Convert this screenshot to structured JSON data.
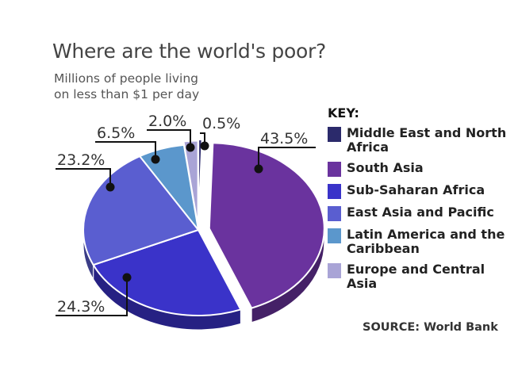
{
  "title": "Where are the world's poor?",
  "subtitle": [
    "Millions of people living",
    "on less than $1 per day"
  ],
  "legend_title": "KEY:",
  "source": "SOURCE: World Bank",
  "chart_data": {
    "type": "pie",
    "title": "Where are the world's poor?",
    "subtitle": "Millions of people living on less than $1 per day",
    "legend_placement": "right",
    "slices": [
      {
        "label": "Middle East and North Africa",
        "value": 0.5,
        "display": "0.5%",
        "color": "#2b2a6b"
      },
      {
        "label": "South Asia",
        "value": 43.5,
        "display": "43.5%",
        "color": "#6a339e"
      },
      {
        "label": "Sub-Saharan Africa",
        "value": 24.3,
        "display": "24.3%",
        "color": "#3a33c9"
      },
      {
        "label": "East Asia and Pacific",
        "value": 23.2,
        "display": "23.2%",
        "color": "#5a5ed0"
      },
      {
        "label": "Latin America and the Caribbean",
        "value": 6.5,
        "display": "6.5%",
        "color": "#5b97cc"
      },
      {
        "label": "Europe and Central Asia",
        "value": 2.0,
        "display": "2.0%",
        "color": "#a9a4d6"
      }
    ]
  }
}
